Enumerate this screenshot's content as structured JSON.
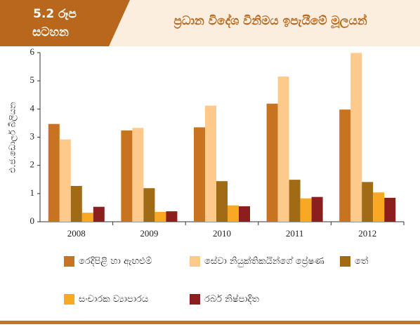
{
  "chart_data": {
    "type": "bar",
    "figure_label": [
      "5.2 රූප",
      "සටහන"
    ],
    "title": "ප්‍රධාන විදේශ විනිමය ඉපැයීමේ මූලයන්",
    "ylabel": "එ.ජ.ඩොලර් බිලියන",
    "categories": [
      "2008",
      "2009",
      "2010",
      "2011",
      "2012"
    ],
    "series": [
      {
        "name": "රෙදිපිළි හා ඇඟළුම්",
        "color": "#c8731f",
        "values": [
          3.47,
          3.24,
          3.35,
          4.19,
          3.98
        ]
      },
      {
        "name": "සේවා නියුක්තිකයින්ගේ ප්‍රේෂණ",
        "color": "#fdca8c",
        "values": [
          2.92,
          3.33,
          4.12,
          5.15,
          5.99
        ]
      },
      {
        "name": "තේ",
        "color": "#a06b14",
        "values": [
          1.27,
          1.19,
          1.44,
          1.49,
          1.41
        ]
      },
      {
        "name": "සංචාරක ව්‍යාපාරය",
        "color": "#f8a823",
        "values": [
          0.32,
          0.35,
          0.58,
          0.83,
          1.04
        ]
      },
      {
        "name": "රබර් නිෂ්පාදිත",
        "color": "#8c1e1e",
        "values": [
          0.53,
          0.37,
          0.55,
          0.88,
          0.85
        ]
      }
    ],
    "ylim": [
      0,
      6
    ],
    "yticks": [
      0,
      1,
      2,
      3,
      4,
      5,
      6
    ],
    "grid": false
  }
}
